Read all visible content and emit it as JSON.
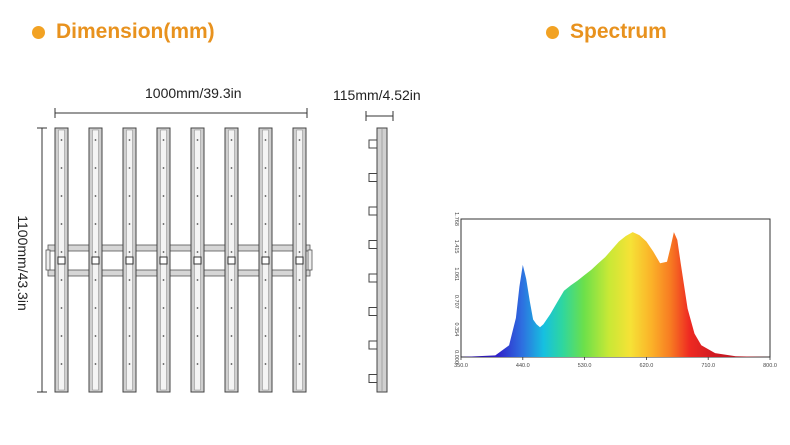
{
  "headings": {
    "dimension": "Dimension(mm)",
    "spectrum": "Spectrum"
  },
  "dimensions": {
    "width": "1000mm/39.3in",
    "depth": "115mm/4.52in",
    "height": "1100mm/43.3in"
  },
  "colors": {
    "accent": "#e8921e",
    "bullet": "#f2a223"
  },
  "chart_data": {
    "type": "area",
    "title": "",
    "xlabel": "",
    "ylabel": "",
    "x_ticks": [
      "350.0",
      "440.0",
      "530.0",
      "620.0",
      "710.0",
      "800.0"
    ],
    "y_ticks": [
      "0.000",
      "0.354",
      "0.707",
      "1.061",
      "1.415",
      "1.768"
    ],
    "xlim": [
      350,
      800
    ],
    "ylim": [
      0,
      1.768
    ],
    "series": [
      {
        "x": [
          350,
          400,
          420,
          430,
          435,
          440,
          445,
          450,
          455,
          460,
          465,
          470,
          480,
          490,
          500,
          510,
          520,
          530,
          540,
          550,
          560,
          570,
          580,
          590,
          600,
          610,
          620,
          630,
          640,
          650,
          655,
          660,
          665,
          670,
          680,
          690,
          700,
          720,
          750,
          800
        ],
        "values": [
          0.0,
          0.02,
          0.15,
          0.5,
          0.9,
          1.18,
          1.0,
          0.72,
          0.48,
          0.42,
          0.38,
          0.42,
          0.55,
          0.7,
          0.85,
          0.92,
          0.98,
          1.05,
          1.12,
          1.2,
          1.28,
          1.38,
          1.48,
          1.55,
          1.6,
          1.56,
          1.48,
          1.35,
          1.2,
          1.22,
          1.4,
          1.6,
          1.5,
          1.2,
          0.62,
          0.3,
          0.15,
          0.05,
          0.01,
          0.0
        ]
      }
    ],
    "grid": false,
    "legend": "none"
  }
}
